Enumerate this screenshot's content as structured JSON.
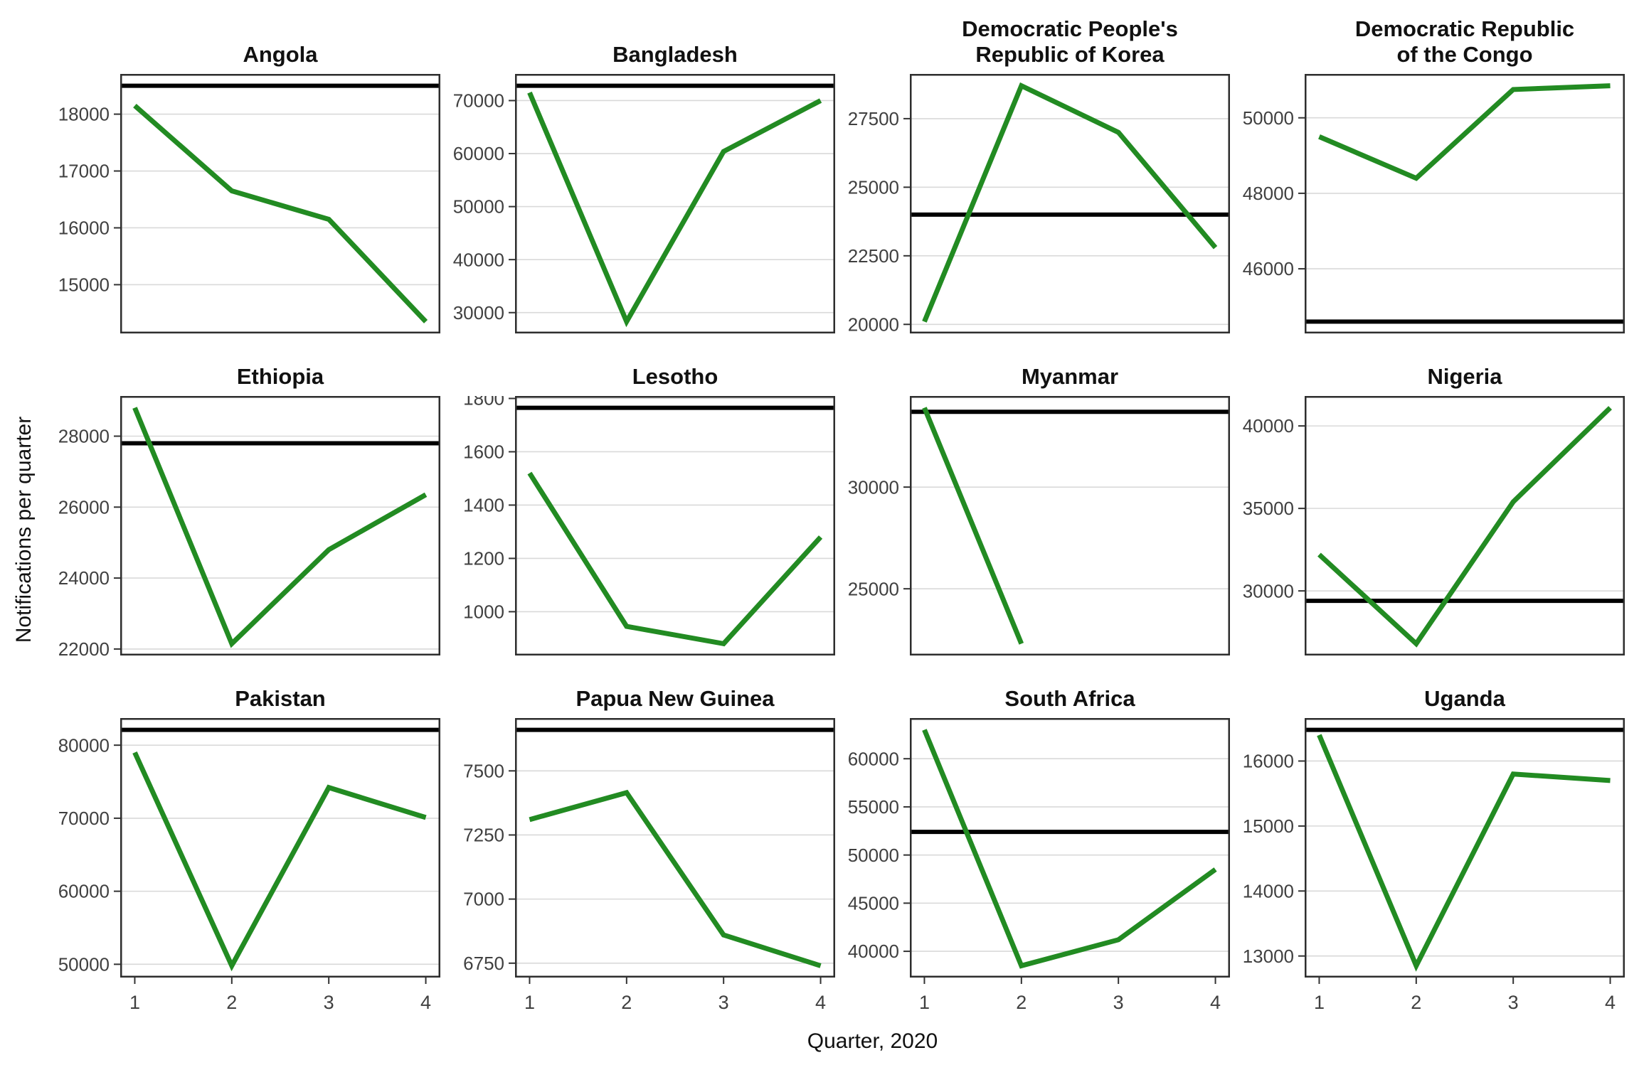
{
  "chart_data": {
    "type": "line",
    "xlabel": "Quarter, 2020",
    "ylabel": "Notifications per quarter",
    "x": [
      1,
      2,
      3,
      4
    ],
    "xticks": [
      "1",
      "2",
      "3",
      "4"
    ],
    "xlim": [
      0.85,
      4.15
    ],
    "grid": "horizontal-only",
    "legend_position": "none",
    "series_color": "#228B22",
    "reference_line_color": "#000000",
    "gridline_color": "#d9d9d9",
    "panel_border_color": "#2e2e2e",
    "tick_mark_color": "#333333",
    "tick_label_color": "#404040",
    "facets": [
      {
        "title": "Angola",
        "values": [
          18150,
          16650,
          16150,
          14350
        ],
        "reference": 18500,
        "yticks": [
          15000,
          16000,
          17000,
          18000
        ]
      },
      {
        "title": "Bangladesh",
        "values": [
          71500,
          28300,
          60400,
          70000
        ],
        "reference": 72800,
        "yticks": [
          30000,
          40000,
          50000,
          60000,
          70000
        ]
      },
      {
        "title": "Democratic People's\nRepublic of Korea",
        "values": [
          20100,
          28700,
          27000,
          22800
        ],
        "reference": 24000,
        "yticks": [
          20000,
          22500,
          25000,
          27500
        ]
      },
      {
        "title": "Democratic Republic\nof the Congo",
        "values": [
          49500,
          48400,
          50750,
          50850
        ],
        "reference": 44600,
        "yticks": [
          46000,
          48000,
          50000
        ]
      },
      {
        "title": "Ethiopia",
        "values": [
          28800,
          22150,
          24800,
          26350
        ],
        "reference": 27800,
        "yticks": [
          22000,
          24000,
          26000,
          28000
        ]
      },
      {
        "title": "Lesotho",
        "values": [
          1520,
          945,
          880,
          1280
        ],
        "reference": 1765,
        "yticks": [
          1000,
          1200,
          1400,
          1600,
          1800
        ]
      },
      {
        "title": "Myanmar",
        "values": [
          33900,
          22300,
          null,
          null
        ],
        "reference": 33700,
        "yticks": [
          25000,
          30000
        ]
      },
      {
        "title": "Nigeria",
        "values": [
          32200,
          26800,
          35400,
          41100
        ],
        "reference": 29400,
        "yticks": [
          30000,
          35000,
          40000
        ]
      },
      {
        "title": "Pakistan",
        "values": [
          79000,
          49800,
          74200,
          70100
        ],
        "reference": 82100,
        "yticks": [
          50000,
          60000,
          70000,
          80000
        ]
      },
      {
        "title": "Papua New Guinea",
        "values": [
          7310,
          7415,
          6860,
          6740
        ],
        "reference": 7660,
        "yticks": [
          6750,
          7000,
          7250,
          7500
        ]
      },
      {
        "title": "South Africa",
        "values": [
          63000,
          38500,
          41200,
          48500
        ],
        "reference": 52400,
        "yticks": [
          40000,
          45000,
          50000,
          55000,
          60000
        ]
      },
      {
        "title": "Uganda",
        "values": [
          16400,
          12850,
          15800,
          15700
        ],
        "reference": 16480,
        "yticks": [
          13000,
          14000,
          15000,
          16000
        ]
      }
    ]
  }
}
